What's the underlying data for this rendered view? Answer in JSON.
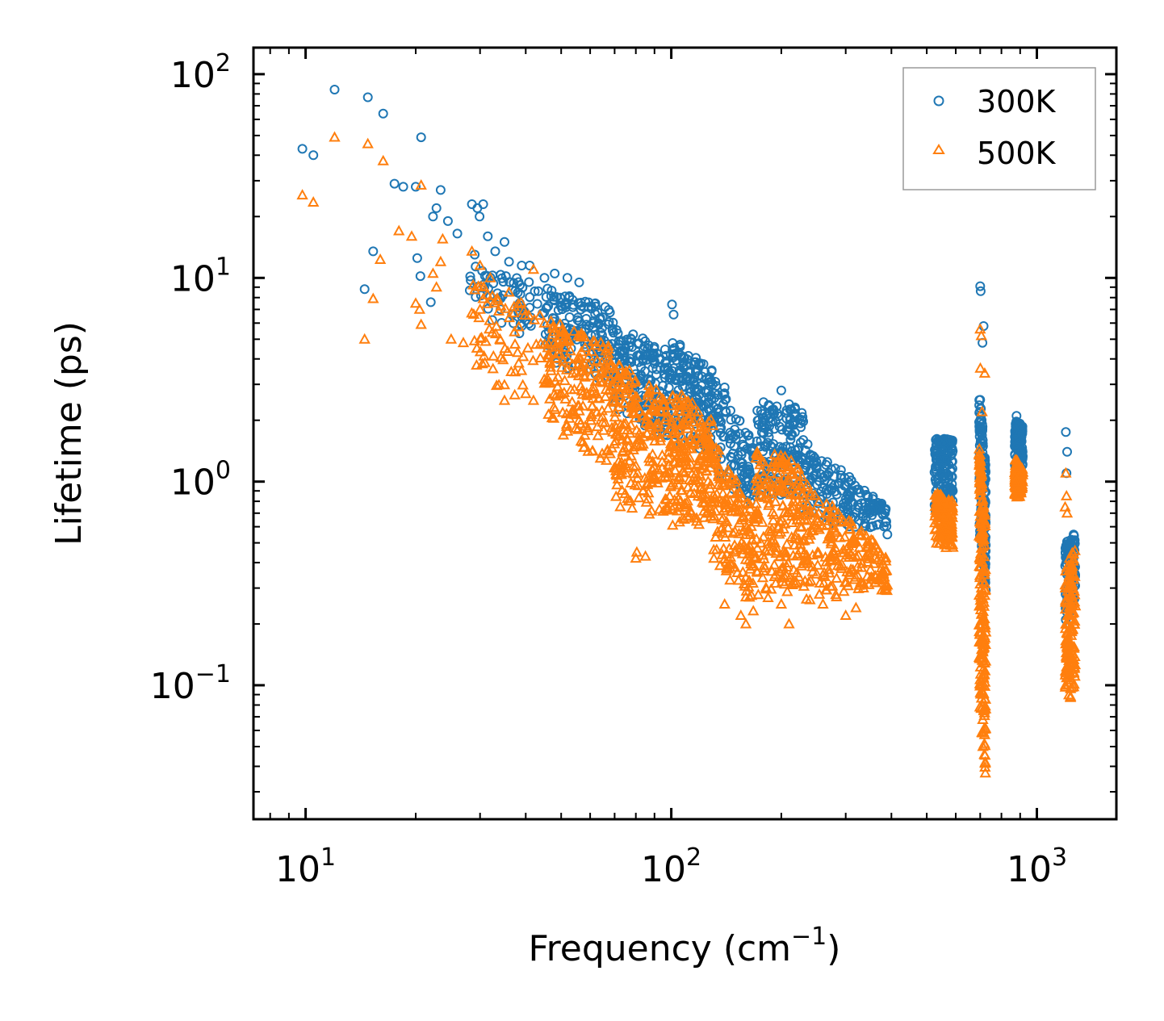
{
  "chart_data": {
    "type": "scatter",
    "title": "",
    "xlabel": "Frequency (cm",
    "xlabel_sup": "−1",
    "xlabel_end": ")",
    "ylabel": "Lifetime (ps)",
    "xscale": "log",
    "yscale": "log",
    "xlim": [
      7.2,
      1650
    ],
    "ylim": [
      0.022,
      135
    ],
    "grid": false,
    "legend_position": "top-right",
    "x_ticks": [
      {
        "value": 10,
        "base": "10",
        "exp": "1"
      },
      {
        "value": 100,
        "base": "10",
        "exp": "2"
      },
      {
        "value": 1000,
        "base": "10",
        "exp": "3"
      }
    ],
    "y_ticks": [
      {
        "value": 0.1,
        "base": "10",
        "exp": "−1"
      },
      {
        "value": 1,
        "base": "10",
        "exp": "0"
      },
      {
        "value": 10,
        "base": "10",
        "exp": "1"
      },
      {
        "value": 100,
        "base": "10",
        "exp": "2"
      }
    ],
    "series": [
      {
        "name": "300K",
        "marker": "circle",
        "color": "#1f77b4",
        "points": [
          [
            9.8,
            43
          ],
          [
            10.5,
            40
          ],
          [
            12.0,
            84
          ],
          [
            14.8,
            77
          ],
          [
            16.3,
            64
          ],
          [
            20.7,
            49
          ],
          [
            17.5,
            29
          ],
          [
            18.5,
            28
          ],
          [
            20.0,
            28
          ],
          [
            22.3,
            20
          ],
          [
            22.8,
            22
          ],
          [
            23.4,
            27
          ],
          [
            24.5,
            19
          ],
          [
            28.5,
            23
          ],
          [
            29.5,
            22
          ],
          [
            29.9,
            20
          ],
          [
            30.6,
            23
          ],
          [
            31.5,
            16
          ],
          [
            35.0,
            15
          ],
          [
            15.3,
            13.5
          ],
          [
            14.5,
            8.8
          ],
          [
            20.2,
            12.5
          ],
          [
            20.6,
            10.2
          ],
          [
            22.0,
            7.6
          ],
          [
            26.0,
            16.5
          ],
          [
            29.0,
            13.0
          ],
          [
            33.0,
            13.5
          ],
          [
            36.0,
            12
          ],
          [
            39.0,
            11.5
          ],
          [
            41.0,
            11.5
          ],
          [
            45.0,
            10
          ],
          [
            48.0,
            10.5
          ],
          [
            52.0,
            10
          ],
          [
            56.0,
            9.5
          ],
          [
            62.0,
            7.5
          ],
          [
            66.0,
            7.2
          ],
          [
            75.0,
            4.5
          ],
          [
            90.0,
            3.9
          ],
          [
            100.5,
            7.4
          ],
          [
            101.5,
            6.6
          ],
          [
            108.0,
            4.1
          ],
          [
            125.0,
            3.2
          ],
          [
            140.0,
            2.9
          ],
          [
            155.0,
            1.25
          ],
          [
            180.0,
            1.5
          ],
          [
            200.0,
            2.8
          ],
          [
            210.0,
            2.4
          ],
          [
            250.0,
            1.2
          ],
          [
            300.0,
            0.82
          ],
          [
            350.0,
            0.78
          ],
          [
            390.0,
            0.55
          ],
          [
            540.0,
            1.55
          ],
          [
            580.0,
            1.6
          ],
          [
            700.0,
            9.1
          ],
          [
            702.0,
            8.6
          ],
          [
            715.0,
            5.8
          ],
          [
            710.0,
            4.8
          ],
          [
            880.0,
            2.1
          ],
          [
            900.0,
            1.9
          ],
          [
            1200.0,
            1.75
          ],
          [
            1210.0,
            1.4
          ],
          [
            1205.0,
            1.1
          ],
          [
            1260.0,
            0.55
          ],
          [
            1215.0,
            0.45
          ]
        ],
        "bands": [
          {
            "x": [
              28,
              45
            ],
            "y_upper": [
              12,
              9
            ],
            "y_lower": [
              7,
              4.6
            ],
            "density": 70
          },
          {
            "x": [
              45,
              70
            ],
            "y_upper": [
              9,
              7.0
            ],
            "y_lower": [
              4.0,
              2.8
            ],
            "density": 160
          },
          {
            "x": [
              70,
              100
            ],
            "y_upper": [
              6.0,
              4.3
            ],
            "y_lower": [
              2.2,
              1.6
            ],
            "density": 180
          },
          {
            "x": [
              100,
              130
            ],
            "y_upper": [
              5.2,
              3.6
            ],
            "y_lower": [
              1.6,
              1.3
            ],
            "density": 160
          },
          {
            "x": [
              130,
              170
            ],
            "y_upper": [
              3.4,
              1.5
            ],
            "y_lower": [
              1.1,
              0.75
            ],
            "density": 120
          },
          {
            "x": [
              170,
              230
            ],
            "y_upper": [
              2.5,
              2.3
            ],
            "y_lower": [
              0.85,
              0.85
            ],
            "density": 160
          },
          {
            "x": [
              230,
              390
            ],
            "y_upper": [
              1.6,
              0.75
            ],
            "y_lower": [
              0.6,
              0.58
            ],
            "density": 180
          },
          {
            "x": [
              525,
              590
            ],
            "y_upper": [
              1.65,
              1.6
            ],
            "y_lower": [
              0.7,
              0.8
            ],
            "density": 140
          },
          {
            "x": [
              695,
              725
            ],
            "y_upper": [
              3.0,
              1.2
            ],
            "y_lower": [
              0.45,
              0.25
            ],
            "density": 160
          },
          {
            "x": [
              870,
              915
            ],
            "y_upper": [
              2.0,
              1.9
            ],
            "y_lower": [
              1.1,
              1.2
            ],
            "density": 120
          },
          {
            "x": [
              1195,
              1275
            ],
            "y_upper": [
              0.5,
              0.55
            ],
            "y_lower": [
              0.2,
              0.25
            ],
            "density": 120
          }
        ]
      },
      {
        "name": "500K",
        "marker": "triangle",
        "color": "#ff7f0e",
        "points": [
          [
            9.8,
            25.5
          ],
          [
            10.5,
            23.5
          ],
          [
            12.0,
            49
          ],
          [
            14.8,
            45.5
          ],
          [
            16.3,
            37.5
          ],
          [
            20.7,
            28.5
          ],
          [
            15.3,
            7.9
          ],
          [
            14.5,
            5.0
          ],
          [
            16.0,
            12.3
          ],
          [
            18.0,
            17
          ],
          [
            19.5,
            16
          ],
          [
            20.0,
            7.5
          ],
          [
            20.7,
            5.9
          ],
          [
            20.5,
            7.0
          ],
          [
            22.3,
            10.5
          ],
          [
            22.8,
            9.0
          ],
          [
            23.4,
            12
          ],
          [
            23.7,
            15.5
          ],
          [
            25.0,
            5.0
          ],
          [
            27.0,
            4.8
          ],
          [
            28.5,
            13.5
          ],
          [
            30.0,
            7.0
          ],
          [
            34.0,
            5.0
          ],
          [
            30.0,
            11.5
          ],
          [
            32.0,
            10
          ],
          [
            36.0,
            8.5
          ],
          [
            38.0,
            4.3
          ],
          [
            40.0,
            2.7
          ],
          [
            42.0,
            2.5
          ],
          [
            35.0,
            2.5
          ],
          [
            42.0,
            11
          ],
          [
            45.0,
            6.0
          ],
          [
            56.0,
            2.0
          ],
          [
            64.0,
            1.3
          ],
          [
            80.0,
            0.42
          ],
          [
            85.0,
            0.43
          ],
          [
            80.5,
            0.45
          ],
          [
            110.0,
            0.75
          ],
          [
            140.0,
            0.25
          ],
          [
            155.0,
            0.22
          ],
          [
            160.0,
            0.2
          ],
          [
            200.0,
            0.25
          ],
          [
            210.0,
            0.2
          ],
          [
            260.0,
            0.25
          ],
          [
            300.0,
            0.22
          ],
          [
            320.0,
            0.24
          ],
          [
            380.0,
            0.35
          ],
          [
            390.0,
            0.31
          ],
          [
            700.0,
            5.6
          ],
          [
            705.0,
            5.2
          ],
          [
            700.5,
            3.6
          ],
          [
            720.0,
            3.4
          ],
          [
            708.0,
            2.2
          ],
          [
            1200.0,
            1.1
          ],
          [
            1205.0,
            0.85
          ],
          [
            1210.0,
            0.7
          ],
          [
            1195.0,
            0.75
          ]
        ],
        "bands": [
          {
            "x": [
              28,
              45
            ],
            "y_upper": [
              10,
              7
            ],
            "y_lower": [
              3.0,
              2.4
            ],
            "density": 70
          },
          {
            "x": [
              45,
              70
            ],
            "y_upper": [
              6.5,
              4.5
            ],
            "y_lower": [
              2.0,
              1.0
            ],
            "density": 200
          },
          {
            "x": [
              70,
              100
            ],
            "y_upper": [
              4.0,
              2.5
            ],
            "y_lower": [
              0.75,
              0.65
            ],
            "density": 220
          },
          {
            "x": [
              100,
              130
            ],
            "y_upper": [
              3.0,
              2.0
            ],
            "y_lower": [
              0.6,
              0.6
            ],
            "density": 200
          },
          {
            "x": [
              130,
              170
            ],
            "y_upper": [
              1.6,
              0.7
            ],
            "y_lower": [
              0.42,
              0.22
            ],
            "density": 160
          },
          {
            "x": [
              170,
              230
            ],
            "y_upper": [
              1.4,
              1.3
            ],
            "y_lower": [
              0.25,
              0.3
            ],
            "density": 200
          },
          {
            "x": [
              230,
              390
            ],
            "y_upper": [
              1.0,
              0.45
            ],
            "y_lower": [
              0.26,
              0.28
            ],
            "density": 220
          },
          {
            "x": [
              525,
              590
            ],
            "y_upper": [
              0.9,
              0.8
            ],
            "y_lower": [
              0.5,
              0.45
            ],
            "density": 140
          },
          {
            "x": [
              695,
              725
            ],
            "y_upper": [
              1.6,
              0.6
            ],
            "y_lower": [
              0.08,
              0.032
            ],
            "density": 220
          },
          {
            "x": [
              870,
              915
            ],
            "y_upper": [
              1.3,
              1.2
            ],
            "y_lower": [
              0.8,
              0.85
            ],
            "density": 120
          },
          {
            "x": [
              1195,
              1275
            ],
            "y_upper": [
              0.4,
              0.48
            ],
            "y_lower": [
              0.07,
              0.1
            ],
            "density": 140
          }
        ]
      }
    ]
  }
}
